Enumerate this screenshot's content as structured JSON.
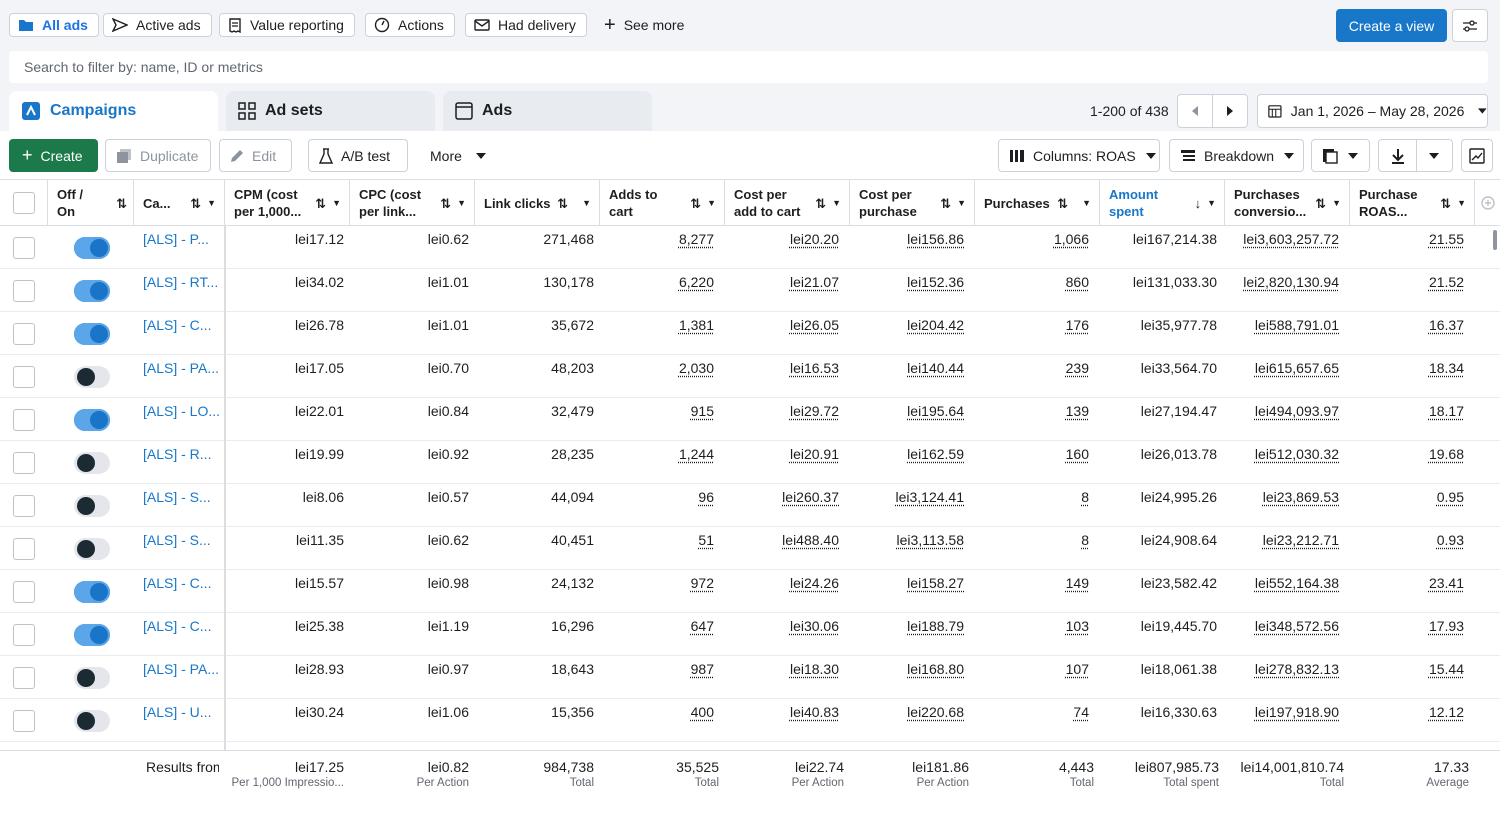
{
  "top_filters": {
    "all_ads": "All ads",
    "active_ads": "Active ads",
    "value_reporting": "Value reporting",
    "actions": "Actions",
    "had_delivery": "Had delivery",
    "see_more": "See more",
    "create_view": "Create a view"
  },
  "search": {
    "placeholder": "Search to filter by: name, ID or metrics"
  },
  "tabs": {
    "campaigns": "Campaigns",
    "ad_sets": "Ad sets",
    "ads": "Ads"
  },
  "pagination": {
    "range": "1-200 of 438"
  },
  "date_range": "Jan 1, 2026 – May 28, 2026",
  "toolbar": {
    "create": "Create",
    "duplicate": "Duplicate",
    "edit": "Edit",
    "ab_test": "A/B test",
    "more": "More",
    "columns": "Columns: ROAS",
    "breakdown": "Breakdown"
  },
  "columns": {
    "offon": [
      "Off /",
      "On"
    ],
    "campaign": "Ca...",
    "cpm": [
      "CPM (cost",
      "per 1,000..."
    ],
    "cpc": [
      "CPC (cost",
      "per link..."
    ],
    "link_clicks": "Link clicks",
    "adds_to_cart": [
      "Adds to",
      "cart"
    ],
    "cost_per_atc": [
      "Cost per",
      "add to cart"
    ],
    "cost_per_purchase": [
      "Cost per",
      "purchase"
    ],
    "purchases": "Purchases",
    "amount_spent": [
      "Amount",
      "spent"
    ],
    "purchases_conv": [
      "Purchases",
      "conversio..."
    ],
    "roas": [
      "Purchase",
      "ROAS..."
    ]
  },
  "rows": [
    {
      "on": true,
      "name": "[ALS] - P...",
      "cpm": "lei17.12",
      "cpc": "lei0.62",
      "clicks": "271,468",
      "atc": "8,277",
      "cpatc": "lei20.20",
      "cpp": "lei156.86",
      "purch": "1,066",
      "spent": "lei167,214.38",
      "conv": "lei3,603,257.72",
      "roas": "21.55"
    },
    {
      "on": true,
      "name": "[ALS] - RT...",
      "cpm": "lei34.02",
      "cpc": "lei1.01",
      "clicks": "130,178",
      "atc": "6,220",
      "cpatc": "lei21.07",
      "cpp": "lei152.36",
      "purch": "860",
      "spent": "lei131,033.30",
      "conv": "lei2,820,130.94",
      "roas": "21.52"
    },
    {
      "on": true,
      "name": "[ALS] - C...",
      "cpm": "lei26.78",
      "cpc": "lei1.01",
      "clicks": "35,672",
      "atc": "1,381",
      "cpatc": "lei26.05",
      "cpp": "lei204.42",
      "purch": "176",
      "spent": "lei35,977.78",
      "conv": "lei588,791.01",
      "roas": "16.37"
    },
    {
      "on": false,
      "name": "[ALS] - PA...",
      "cpm": "lei17.05",
      "cpc": "lei0.70",
      "clicks": "48,203",
      "atc": "2,030",
      "cpatc": "lei16.53",
      "cpp": "lei140.44",
      "purch": "239",
      "spent": "lei33,564.70",
      "conv": "lei615,657.65",
      "roas": "18.34"
    },
    {
      "on": true,
      "name": "[ALS] - LO...",
      "cpm": "lei22.01",
      "cpc": "lei0.84",
      "clicks": "32,479",
      "atc": "915",
      "cpatc": "lei29.72",
      "cpp": "lei195.64",
      "purch": "139",
      "spent": "lei27,194.47",
      "conv": "lei494,093.97",
      "roas": "18.17"
    },
    {
      "on": false,
      "name": "[ALS] - R...",
      "cpm": "lei19.99",
      "cpc": "lei0.92",
      "clicks": "28,235",
      "atc": "1,244",
      "cpatc": "lei20.91",
      "cpp": "lei162.59",
      "purch": "160",
      "spent": "lei26,013.78",
      "conv": "lei512,030.32",
      "roas": "19.68"
    },
    {
      "on": false,
      "name": "[ALS] - S...",
      "cpm": "lei8.06",
      "cpc": "lei0.57",
      "clicks": "44,094",
      "atc": "96",
      "cpatc": "lei260.37",
      "cpp": "lei3,124.41",
      "purch": "8",
      "spent": "lei24,995.26",
      "conv": "lei23,869.53",
      "roas": "0.95"
    },
    {
      "on": false,
      "name": "[ALS] - S...",
      "cpm": "lei11.35",
      "cpc": "lei0.62",
      "clicks": "40,451",
      "atc": "51",
      "cpatc": "lei488.40",
      "cpp": "lei3,113.58",
      "purch": "8",
      "spent": "lei24,908.64",
      "conv": "lei23,212.71",
      "roas": "0.93"
    },
    {
      "on": true,
      "name": "[ALS] - C...",
      "cpm": "lei15.57",
      "cpc": "lei0.98",
      "clicks": "24,132",
      "atc": "972",
      "cpatc": "lei24.26",
      "cpp": "lei158.27",
      "purch": "149",
      "spent": "lei23,582.42",
      "conv": "lei552,164.38",
      "roas": "23.41"
    },
    {
      "on": true,
      "name": "[ALS] - C...",
      "cpm": "lei25.38",
      "cpc": "lei1.19",
      "clicks": "16,296",
      "atc": "647",
      "cpatc": "lei30.06",
      "cpp": "lei188.79",
      "purch": "103",
      "spent": "lei19,445.70",
      "conv": "lei348,572.56",
      "roas": "17.93"
    },
    {
      "on": false,
      "name": "[ALS] - PA...",
      "cpm": "lei28.93",
      "cpc": "lei0.97",
      "clicks": "18,643",
      "atc": "987",
      "cpatc": "lei18.30",
      "cpp": "lei168.80",
      "purch": "107",
      "spent": "lei18,061.38",
      "conv": "lei278,832.13",
      "roas": "15.44"
    },
    {
      "on": false,
      "name": "[ALS] - U...",
      "cpm": "lei30.24",
      "cpc": "lei1.06",
      "clicks": "15,356",
      "atc": "400",
      "cpatc": "lei40.83",
      "cpp": "lei220.68",
      "purch": "74",
      "spent": "lei16,330.63",
      "conv": "lei197,918.90",
      "roas": "12.12"
    }
  ],
  "totals": {
    "label": "Results from",
    "cpm": {
      "v": "lei17.25",
      "s": "Per 1,000 Impressio..."
    },
    "cpc": {
      "v": "lei0.82",
      "s": "Per Action"
    },
    "clicks": {
      "v": "984,738",
      "s": "Total"
    },
    "atc": {
      "v": "35,525",
      "s": "Total"
    },
    "cpatc": {
      "v": "lei22.74",
      "s": "Per Action"
    },
    "cpp": {
      "v": "lei181.86",
      "s": "Per Action"
    },
    "purch": {
      "v": "4,443",
      "s": "Total"
    },
    "spent": {
      "v": "lei807,985.73",
      "s": "Total spent"
    },
    "conv": {
      "v": "lei14,001,810.74",
      "s": "Total"
    },
    "roas": {
      "v": "17.33",
      "s": "Average"
    }
  },
  "colors": {
    "accent": "#1877c9",
    "create_green": "#1c7a4a"
  }
}
